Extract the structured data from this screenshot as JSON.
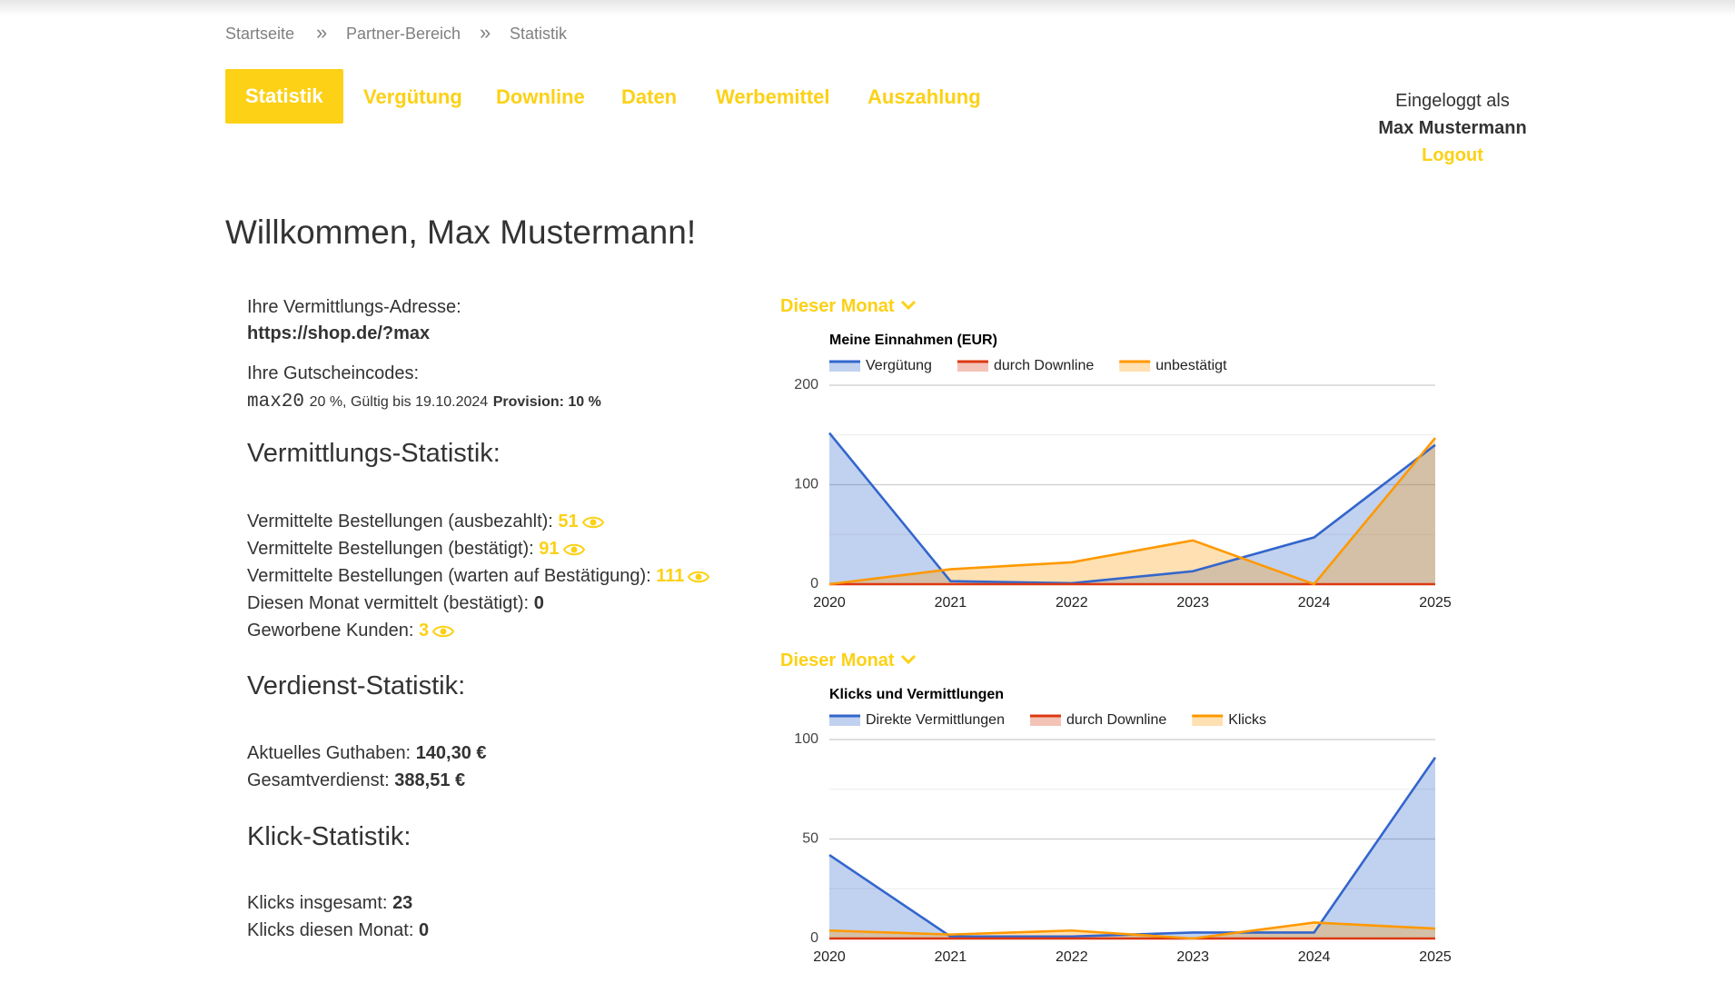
{
  "breadcrumb": {
    "items": [
      "Startseite",
      "Partner-Bereich",
      "Statistik"
    ],
    "separator": "»"
  },
  "nav": [
    "Statistik",
    "Vergütung",
    "Downline",
    "Daten",
    "Werbemittel",
    "Auszahlung"
  ],
  "user": {
    "label": "Eingeloggt als",
    "name": "Max Mustermann",
    "logout": "Logout"
  },
  "welcome": "Willkommen, Max Mustermann!",
  "referral": {
    "label": "Ihre Vermittlungs-Adresse:",
    "url": "https://shop.de/?max"
  },
  "vouchers": {
    "label": "Ihre Gutscheincodes:",
    "code": "max20",
    "details": "20 %, Gültig bis 19.10.2024",
    "provision": "Provision: 10 %"
  },
  "sections": [
    {
      "title": "Vermittlungs-Statistik:",
      "rows": [
        {
          "label": "Vermittelte Bestellungen (ausbezahlt):",
          "value": 51,
          "link": true
        },
        {
          "label": "Vermittelte Bestellungen (bestätigt):",
          "value": 91,
          "link": true
        },
        {
          "label": "Vermittelte Bestellungen (warten auf Bestätigung):",
          "value": 111,
          "link": true
        },
        {
          "label": "Diesen Monat vermittelt (bestätigt):",
          "value": 0,
          "link": false
        },
        {
          "label": "Geworbene Kunden:",
          "value": 3,
          "link": true
        }
      ]
    },
    {
      "title": "Verdienst-Statistik:",
      "rows": [
        {
          "label": "Aktuelles Guthaben:",
          "value": "140,30 €",
          "link": false
        },
        {
          "label": "Gesamtverdienst:",
          "value": "388,51 €",
          "link": false
        }
      ]
    },
    {
      "title": "Klick-Statistik:",
      "rows": [
        {
          "label": "Klicks insgesamt:",
          "value": 23,
          "link": false
        },
        {
          "label": "Klicks diesen Monat:",
          "value": 0,
          "link": false
        }
      ]
    }
  ],
  "period_selector": [
    "Dieser Monat",
    "Dieser Monat"
  ],
  "chart_data": [
    {
      "type": "area",
      "title": "Meine Einnahmen (EUR)",
      "x": [
        2020,
        2021,
        2022,
        2023,
        2024,
        2025
      ],
      "xlim": [
        2020,
        2025
      ],
      "xticks": [
        2020,
        2021,
        2022,
        2023,
        2024,
        2025
      ],
      "ylim": [
        0,
        200
      ],
      "yticks": [
        0,
        100,
        200
      ],
      "minor_gridlines": [
        50,
        150
      ],
      "grid": true,
      "series": [
        {
          "name": "Vergütung",
          "color": "#3366cc",
          "values": [
            152,
            3,
            1,
            13,
            47,
            140
          ]
        },
        {
          "name": "durch Downline",
          "color": "#dc3912",
          "values": [
            0,
            0,
            0,
            0,
            0,
            0
          ]
        },
        {
          "name": "unbestätigt",
          "color": "#ff9900",
          "values": [
            0,
            15,
            22,
            44,
            0,
            147
          ]
        }
      ]
    },
    {
      "type": "area",
      "title": "Klicks und Vermittlungen",
      "x": [
        2020,
        2021,
        2022,
        2023,
        2024,
        2025
      ],
      "xlim": [
        2020,
        2025
      ],
      "xticks": [
        2020,
        2021,
        2022,
        2023,
        2024,
        2025
      ],
      "ylim": [
        0,
        100
      ],
      "yticks": [
        0,
        50,
        100
      ],
      "minor_gridlines": [
        25,
        75
      ],
      "grid": true,
      "series": [
        {
          "name": "Direkte Vermittlungen",
          "color": "#3366cc",
          "values": [
            42,
            1,
            1,
            3,
            3,
            91
          ]
        },
        {
          "name": "durch Downline",
          "color": "#dc3912",
          "values": [
            0,
            0,
            0,
            0,
            0,
            0
          ]
        },
        {
          "name": "Klicks",
          "color": "#ff9900",
          "values": [
            4,
            2,
            4,
            0,
            8,
            5
          ]
        }
      ]
    }
  ]
}
